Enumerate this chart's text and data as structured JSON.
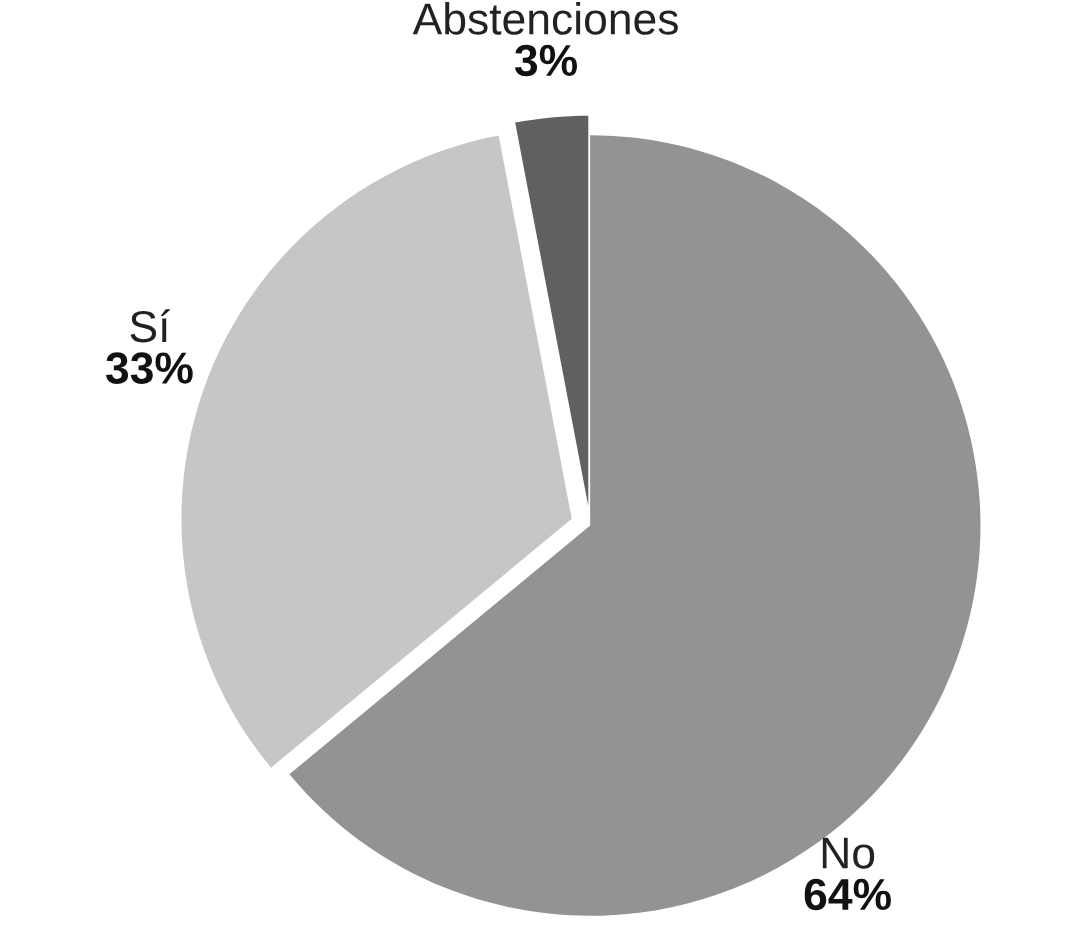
{
  "chart_data": {
    "type": "pie",
    "categories": [
      "No",
      "Sí",
      "Abstenciones"
    ],
    "values": [
      64,
      33,
      3
    ],
    "value_labels": [
      "64%",
      "33%",
      "3%"
    ],
    "colors": [
      "#939396",
      "#c6c6c6",
      "#5f6062"
    ],
    "legend": false
  }
}
